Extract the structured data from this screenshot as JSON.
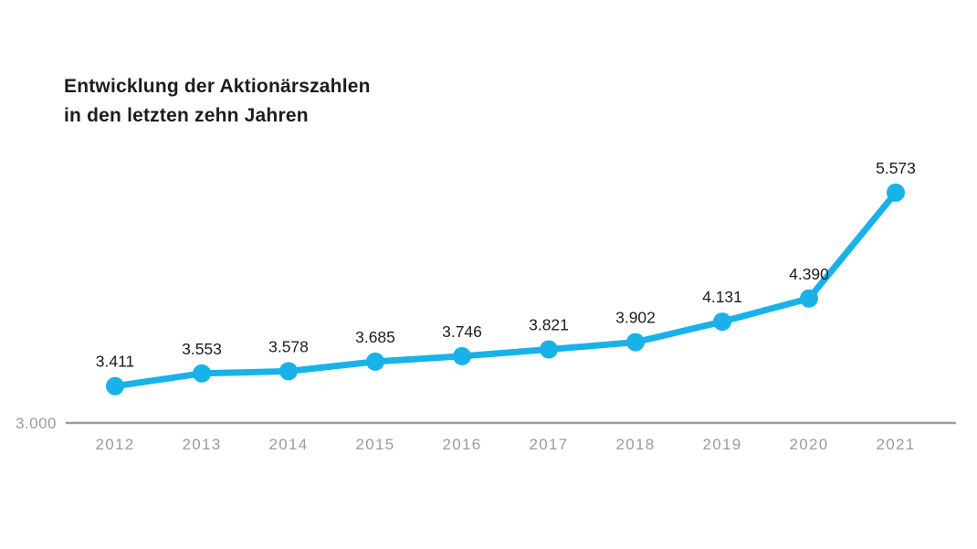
{
  "chart": {
    "title_line1": "Entwicklung der Aktionärszahlen",
    "title_line2": "in den letzten zehn Jahren"
  },
  "chart_data": {
    "type": "line",
    "title": "Entwicklung der Aktionärszahlen in den letzten zehn Jahren",
    "categories": [
      "2012",
      "2013",
      "2014",
      "2015",
      "2016",
      "2017",
      "2018",
      "2019",
      "2020",
      "2021"
    ],
    "values": [
      3411,
      3553,
      3578,
      3685,
      3746,
      3821,
      3902,
      4131,
      4390,
      5573
    ],
    "point_labels": [
      "3.411",
      "3.553",
      "3.578",
      "3.685",
      "3.746",
      "3.821",
      "3.902",
      "4.131",
      "4.390",
      "5.573"
    ],
    "y_axis_label": "3.000",
    "y_baseline": 3000,
    "ylim": [
      3000,
      5900
    ],
    "xlabel": "",
    "ylabel": "",
    "grid": false,
    "legend": "none",
    "colors": {
      "line": "#18B2E9",
      "marker": "#18B2E9",
      "text_dark": "#1D1D1B",
      "text_gray": "#9C9B9B",
      "axis": "#9B9B9B"
    }
  }
}
